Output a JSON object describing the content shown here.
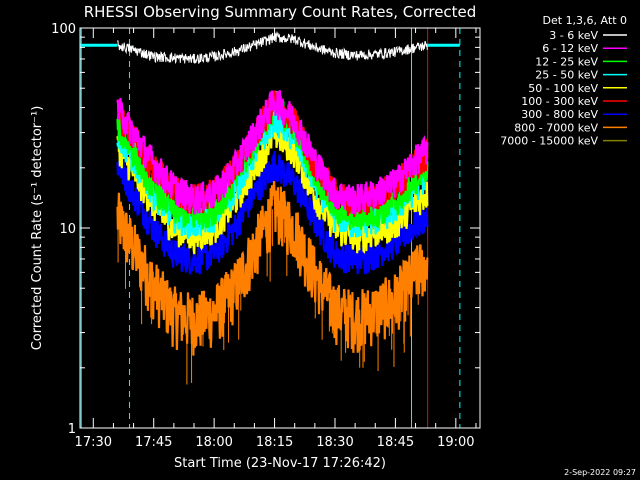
{
  "chart_data": {
    "type": "line",
    "title": "RHESSI Observing Summary Count Rates, Corrected",
    "xlabel": "Start Time (23-Nov-17 17:26:42)",
    "ylabel": "Corrected Count Rate (s⁻¹ detector⁻¹)",
    "yscale": "log",
    "ylim": [
      1,
      100
    ],
    "xlim": [
      "17:26:42",
      "19:06:00"
    ],
    "x_ticks": [
      "17:30",
      "17:45",
      "18:00",
      "18:15",
      "18:30",
      "18:45",
      "19:00"
    ],
    "y_ticks": [
      "1",
      "10",
      "100"
    ],
    "legend_title": "Det 1,3,6, Att 0",
    "legend_position": "right",
    "footer": "2-Sep-2022 09:27",
    "data_start": "17:36:00",
    "data_end": "18:53:00",
    "vertical_lines": [
      {
        "time": "17:27:00",
        "color": "#00ffff",
        "style": "solid"
      },
      {
        "time": "17:39:00",
        "color": "#00ffff",
        "style": "dashed"
      },
      {
        "time": "18:49:00",
        "color": "#00ffff",
        "style": "solid"
      },
      {
        "time": "19:01:00",
        "color": "#00ffff",
        "style": "dashed"
      },
      {
        "time": "18:53:00",
        "color": "#ff0000",
        "style": "solid"
      }
    ],
    "series": [
      {
        "name": "3 - 6 keV",
        "color": "#ffffff",
        "times": [
          "17:36",
          "17:40",
          "17:45",
          "17:50",
          "17:55",
          "18:00",
          "18:05",
          "18:10",
          "18:15",
          "18:20",
          "18:25",
          "18:30",
          "18:35",
          "18:40",
          "18:45",
          "18:50",
          "18:53"
        ],
        "values": [
          82,
          78,
          72,
          71,
          70,
          72,
          76,
          82,
          90,
          88,
          80,
          75,
          73,
          74,
          76,
          80,
          82
        ]
      },
      {
        "name": "6 - 12 keV",
        "color": "#ff00ff",
        "times": [
          "17:36",
          "17:40",
          "17:45",
          "17:50",
          "17:55",
          "18:00",
          "18:05",
          "18:10",
          "18:15",
          "18:20",
          "18:25",
          "18:30",
          "18:35",
          "18:40",
          "18:45",
          "18:50",
          "18:53"
        ],
        "values": [
          40,
          30,
          21,
          16,
          14,
          15,
          20,
          30,
          44,
          35,
          22,
          15,
          14,
          15,
          17,
          22,
          25
        ]
      },
      {
        "name": "12 - 25 keV",
        "color": "#00ff00",
        "times": [
          "17:36",
          "17:40",
          "17:45",
          "17:50",
          "17:55",
          "18:00",
          "18:05",
          "18:10",
          "18:15",
          "18:20",
          "18:25",
          "18:30",
          "18:35",
          "18:40",
          "18:45",
          "18:50",
          "18:53"
        ],
        "values": [
          33,
          24,
          16,
          12.5,
          11.5,
          12.5,
          17,
          27,
          42,
          32,
          19,
          12.5,
          11.5,
          12,
          13.5,
          17.5,
          21
        ]
      },
      {
        "name": "25 - 50 keV",
        "color": "#00ffff",
        "times": [
          "17:36",
          "17:40",
          "17:45",
          "17:50",
          "17:55",
          "18:00",
          "18:05",
          "18:10",
          "18:15",
          "18:20",
          "18:25",
          "18:30",
          "18:35",
          "18:40",
          "18:45",
          "18:50",
          "18:53"
        ],
        "values": [
          30,
          22,
          15,
          11.5,
          10.5,
          11.5,
          15.5,
          24,
          36,
          28,
          17,
          11.5,
          10.5,
          11,
          12.5,
          16,
          19
        ]
      },
      {
        "name": "50 - 100 keV",
        "color": "#ffff00",
        "times": [
          "17:36",
          "17:40",
          "17:45",
          "17:50",
          "17:55",
          "18:00",
          "18:05",
          "18:10",
          "18:15",
          "18:20",
          "18:25",
          "18:30",
          "18:35",
          "18:40",
          "18:45",
          "18:50",
          "18:53"
        ],
        "values": [
          26,
          19,
          13,
          10,
          9,
          10,
          13.5,
          20,
          30,
          24,
          14.5,
          10,
          9,
          9.5,
          10.5,
          13.5,
          15
        ]
      },
      {
        "name": "100 - 300 keV",
        "color": "#ff0000",
        "times": [
          "17:36",
          "17:40",
          "17:45",
          "17:50",
          "17:55",
          "18:00",
          "18:05",
          "18:10",
          "18:15",
          "18:20",
          "18:25",
          "18:30",
          "18:35",
          "18:40",
          "18:45",
          "18:50",
          "18:53"
        ],
        "values": [
          38,
          29,
          20,
          15.5,
          14,
          15,
          20,
          29,
          43,
          34,
          21,
          15,
          13.5,
          14.5,
          16.5,
          21,
          24
        ]
      },
      {
        "name": "300 - 800 keV",
        "color": "#0000ff",
        "times": [
          "17:36",
          "17:40",
          "17:45",
          "17:50",
          "17:55",
          "18:00",
          "18:05",
          "18:10",
          "18:15",
          "18:20",
          "18:25",
          "18:30",
          "18:35",
          "18:40",
          "18:45",
          "18:50",
          "18:53"
        ],
        "values": [
          21,
          15,
          10,
          7.5,
          7,
          7.5,
          10,
          15,
          21,
          17,
          11,
          7.5,
          7,
          7.5,
          8.5,
          10.5,
          11.5
        ]
      },
      {
        "name": "800 - 7000 keV",
        "color": "#ff8000",
        "times": [
          "17:36",
          "17:40",
          "17:45",
          "17:50",
          "17:55",
          "18:00",
          "18:05",
          "18:10",
          "18:15",
          "18:20",
          "18:25",
          "18:30",
          "18:35",
          "18:40",
          "18:45",
          "18:50",
          "18:53"
        ],
        "values": [
          11.5,
          8,
          5.2,
          3.8,
          3.5,
          3.8,
          5,
          8,
          13,
          10,
          6,
          4,
          3.6,
          3.9,
          4.5,
          6,
          7
        ]
      },
      {
        "name": "7000 - 15000 keV",
        "color": "#808000",
        "times": [],
        "values": []
      }
    ]
  }
}
